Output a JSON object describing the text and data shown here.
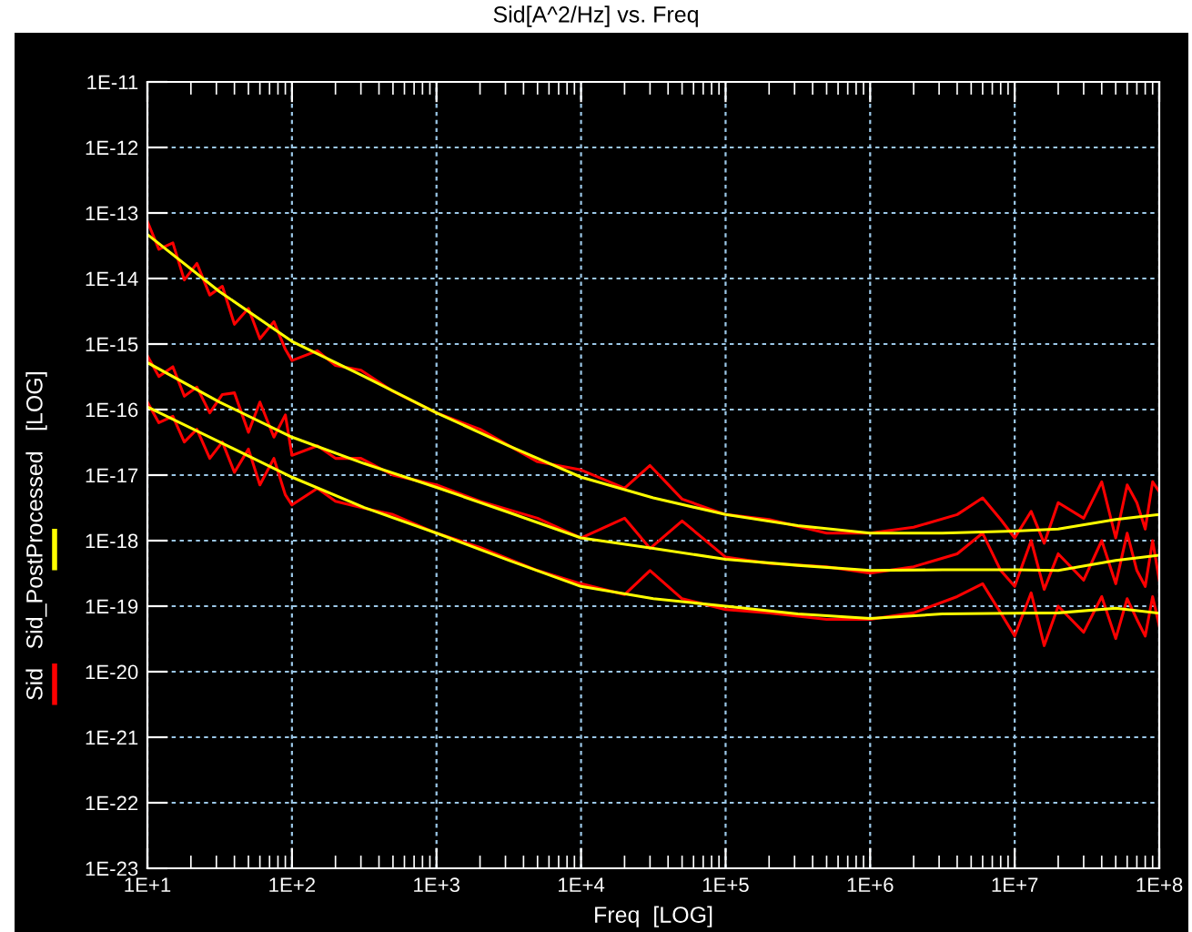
{
  "chart_data": {
    "type": "line",
    "title": "Sid[A^2/Hz] vs. Freq",
    "xlabel": "Freq  [LOG]",
    "ylabel": "[LOG]",
    "log": "xy",
    "grid": true,
    "legend": "left",
    "line_style": "solid",
    "marker": "none",
    "xlim": [
      10,
      100000000
    ],
    "ylim": [
      1e-23,
      1e-11
    ],
    "xticks": [
      {
        "value": 10,
        "label": "1E+1"
      },
      {
        "value": 100,
        "label": "1E+2"
      },
      {
        "value": 1000,
        "label": "1E+3"
      },
      {
        "value": 10000,
        "label": "1E+4"
      },
      {
        "value": 100000,
        "label": "1E+5"
      },
      {
        "value": 1000000,
        "label": "1E+6"
      },
      {
        "value": 10000000,
        "label": "1E+7"
      },
      {
        "value": 100000000,
        "label": "1E+8"
      }
    ],
    "yticks": [
      {
        "value": 1e-23,
        "label": "1E-23"
      },
      {
        "value": 1e-22,
        "label": "1E-22"
      },
      {
        "value": 1e-21,
        "label": "1E-21"
      },
      {
        "value": 1e-20,
        "label": "1E-20"
      },
      {
        "value": 1e-19,
        "label": "1E-19"
      },
      {
        "value": 1e-18,
        "label": "1E-18"
      },
      {
        "value": 1e-17,
        "label": "1E-17"
      },
      {
        "value": 1e-16,
        "label": "1E-16"
      },
      {
        "value": 1e-15,
        "label": "1E-15"
      },
      {
        "value": 1e-14,
        "label": "1E-14"
      },
      {
        "value": 1e-13,
        "label": "1E-13"
      },
      {
        "value": 1e-12,
        "label": "1E-12"
      },
      {
        "value": 1e-11,
        "label": "1E-11"
      }
    ],
    "series": [
      {
        "name": "Sid",
        "color": "#ff0000",
        "x": [
          10,
          12,
          15,
          18,
          22,
          27,
          33,
          40,
          50,
          60,
          75,
          90,
          100,
          150,
          200,
          300,
          500,
          1000,
          2000,
          5000,
          10000,
          20000,
          30000,
          50000,
          100000,
          200000,
          500000,
          1000000,
          2000000,
          4000000,
          6000000,
          8000000,
          10000000,
          13000000,
          16000000,
          20000000,
          30000000,
          40000000,
          50000000,
          60000000,
          70000000,
          80000000,
          90000000,
          100000000
        ],
        "values": [
          7.4e-14,
          2.8e-14,
          3.5e-14,
          9.5e-15,
          1.7e-14,
          5.6e-15,
          7.6e-15,
          2e-15,
          3.5e-15,
          1.2e-15,
          2.2e-15,
          8.3e-16,
          5.6e-16,
          7.9e-16,
          4.7e-16,
          4e-16,
          1.9e-16,
          8.9e-17,
          5e-17,
          1.6e-17,
          1.2e-17,
          6.3e-18,
          1.4e-17,
          4.3e-18,
          2.5e-18,
          2.1e-18,
          1.3e-18,
          1.3e-18,
          1.6e-18,
          2.5e-18,
          4.5e-18,
          2.1e-18,
          1.1e-18,
          2.8e-18,
          9.1e-19,
          3.8e-18,
          2.2e-18,
          7.9e-18,
          1.1e-18,
          7.1e-18,
          3.8e-18,
          1.5e-18,
          7.9e-18,
          5.6e-18
        ]
      },
      {
        "color": "#ff0000",
        "x": [
          10,
          12,
          15,
          18,
          22,
          27,
          33,
          40,
          50,
          60,
          75,
          90,
          100,
          150,
          200,
          300,
          500,
          1000,
          2000,
          5000,
          10000,
          20000,
          30000,
          50000,
          100000,
          200000,
          500000,
          1000000,
          2000000,
          4000000,
          6000000,
          8000000,
          10000000,
          13000000,
          16000000,
          20000000,
          30000000,
          40000000,
          50000000,
          60000000,
          70000000,
          80000000,
          90000000,
          100000000
        ],
        "values": [
          6.6e-16,
          3.2e-16,
          4.5e-16,
          1.6e-16,
          2.2e-16,
          8.9e-17,
          1.7e-16,
          1.8e-16,
          4.5e-17,
          1.3e-16,
          3.8e-17,
          8.3e-17,
          2e-17,
          2.8e-17,
          1.8e-17,
          1.8e-17,
          1e-17,
          7.1e-18,
          4e-18,
          2.2e-18,
          1.1e-18,
          2.2e-18,
          7.6e-19,
          2e-18,
          5.6e-19,
          4.5e-19,
          4e-19,
          3.2e-19,
          4e-19,
          6.3e-19,
          1.3e-18,
          3.5e-19,
          2e-19,
          1e-18,
          1.8e-19,
          6.3e-19,
          2.5e-19,
          1e-18,
          2.2e-19,
          1.3e-18,
          3.5e-19,
          2e-19,
          1e-18,
          2.5e-19
        ]
      },
      {
        "color": "#ff0000",
        "x": [
          10,
          12,
          15,
          18,
          22,
          27,
          33,
          40,
          50,
          60,
          75,
          90,
          100,
          150,
          200,
          300,
          500,
          1000,
          2000,
          5000,
          10000,
          20000,
          30000,
          50000,
          100000,
          200000,
          500000,
          1000000,
          2000000,
          4000000,
          6000000,
          8000000,
          10000000,
          13000000,
          16000000,
          20000000,
          30000000,
          40000000,
          50000000,
          60000000,
          70000000,
          80000000,
          90000000,
          100000000
        ],
        "values": [
          1.3e-16,
          6.3e-17,
          7.9e-17,
          3.2e-17,
          5e-17,
          1.8e-17,
          3.2e-17,
          1.1e-17,
          2.5e-17,
          7.1e-18,
          1.8e-17,
          5e-18,
          3.5e-18,
          6.3e-18,
          4e-18,
          3.2e-18,
          2.5e-18,
          1.3e-18,
          7.9e-19,
          3.5e-19,
          2.2e-19,
          1.5e-19,
          3.5e-19,
          1.3e-19,
          8.9e-20,
          7.9e-20,
          6.3e-20,
          6.3e-20,
          7.9e-20,
          1.4e-19,
          2.2e-19,
          7.9e-20,
          3.5e-20,
          1.6e-19,
          2.5e-20,
          1e-19,
          4e-20,
          1.4e-19,
          3.2e-20,
          1.3e-19,
          6.3e-20,
          3.5e-20,
          1.4e-19,
          5e-20
        ]
      },
      {
        "name": "Sid_PostProcessed",
        "color": "#ffff00",
        "x": [
          10,
          31.6,
          100,
          316,
          1000,
          3160,
          10000,
          31600,
          100000,
          316000,
          1000000,
          3160000,
          10000000,
          20000000,
          50000000,
          100000000
        ],
        "values": [
          4.7e-14,
          6.3e-15,
          1.1e-15,
          3.2e-16,
          8.9e-17,
          2.8e-17,
          9.3e-18,
          4.5e-18,
          2.5e-18,
          1.7e-18,
          1.3e-18,
          1.3e-18,
          1.4e-18,
          1.5e-18,
          2.1e-18,
          2.5e-18
        ]
      },
      {
        "color": "#ffff00",
        "x": [
          10,
          31.6,
          100,
          316,
          1000,
          3160,
          10000,
          31600,
          100000,
          316000,
          1000000,
          3160000,
          10000000,
          20000000,
          50000000,
          100000000
        ],
        "values": [
          5.2e-16,
          1.3e-16,
          3.8e-17,
          1.5e-17,
          6.5e-18,
          2.7e-18,
          1.1e-18,
          7.6e-19,
          5.2e-19,
          4.2e-19,
          3.5e-19,
          3.6e-19,
          3.6e-19,
          3.5e-19,
          5e-19,
          6e-19
        ]
      },
      {
        "color": "#ffff00",
        "x": [
          10,
          31.6,
          100,
          316,
          1000,
          3160,
          10000,
          31600,
          100000,
          316000,
          1000000,
          3160000,
          10000000,
          20000000,
          50000000,
          100000000
        ],
        "values": [
          1.1e-16,
          3.2e-17,
          9.3e-18,
          3.2e-18,
          1.3e-18,
          5e-19,
          2e-19,
          1.3e-19,
          1e-19,
          7.6e-20,
          6.5e-20,
          7.6e-20,
          7.8e-20,
          7.9e-20,
          9.3e-20,
          7.8e-20
        ]
      }
    ]
  }
}
